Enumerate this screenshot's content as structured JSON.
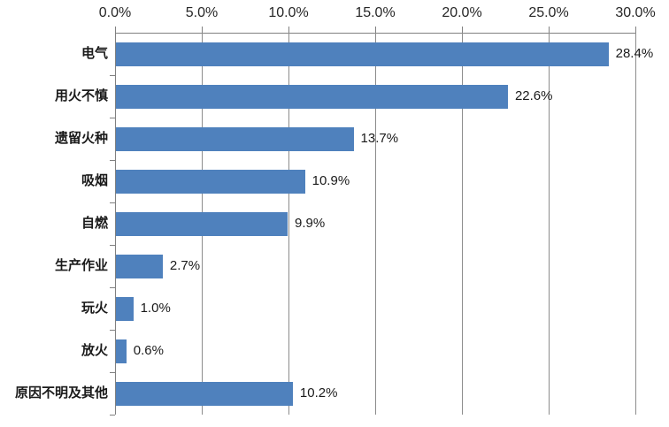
{
  "chart_data": {
    "type": "bar",
    "orientation": "horizontal",
    "title": "",
    "categories": [
      "电气",
      "用火不慎",
      "遗留火种",
      "吸烟",
      "自燃",
      "生产作业",
      "玩火",
      "放火",
      "原因不明及其他"
    ],
    "values": [
      28.4,
      22.6,
      13.7,
      10.9,
      9.9,
      2.7,
      1.0,
      0.6,
      10.2
    ],
    "value_labels": [
      "28.4%",
      "22.6%",
      "13.7%",
      "10.9%",
      "9.9%",
      "2.7%",
      "1.0%",
      "0.6%",
      "10.2%"
    ],
    "x_ticks": [
      "0.0%",
      "5.0%",
      "10.0%",
      "15.0%",
      "20.0%",
      "25.0%",
      "30.0%"
    ],
    "xlim": [
      0,
      30
    ],
    "x_tick_step": 5,
    "grid": true,
    "legend": "none",
    "axis_position": "top",
    "colors": {
      "bar": "#4F81BD",
      "gridline": "#8c8c8c",
      "axis": "#808080",
      "text": "#1a1a1a",
      "background": "#ffffff"
    }
  }
}
